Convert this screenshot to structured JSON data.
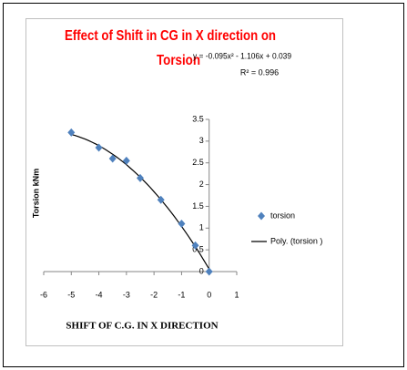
{
  "chart_data": {
    "type": "scatter",
    "title": [
      "Effect of Shift in CG in X direction on",
      "Torsion"
    ],
    "x_label": "SHIFT OF C.G. IN X DIRECTION",
    "y_label": "Torsion kNm",
    "series": [
      {
        "name": "torsion",
        "color": "#4f81bd",
        "x": [
          -5,
          -4,
          -3.5,
          -3,
          -2.5,
          -1.75,
          -1,
          -0.5,
          0
        ],
        "values": [
          3.2,
          2.85,
          2.6,
          2.55,
          2.15,
          1.65,
          1.1,
          0.6,
          0
        ]
      }
    ],
    "trendline": {
      "name": "Poly. (torsion )",
      "equation": "y = -0.095x² - 1.106x + 0.039",
      "r_squared": "R² = 0.996",
      "color": "#000000"
    },
    "xlim": [
      -6,
      1
    ],
    "xticks": [
      -6,
      -5,
      -4,
      -3,
      -2,
      -1,
      0,
      1
    ],
    "ylim": [
      0,
      3.5
    ],
    "yticks": [
      0,
      0.5,
      1,
      1.5,
      2,
      2.5,
      3,
      3.5
    ],
    "legend": "right"
  }
}
